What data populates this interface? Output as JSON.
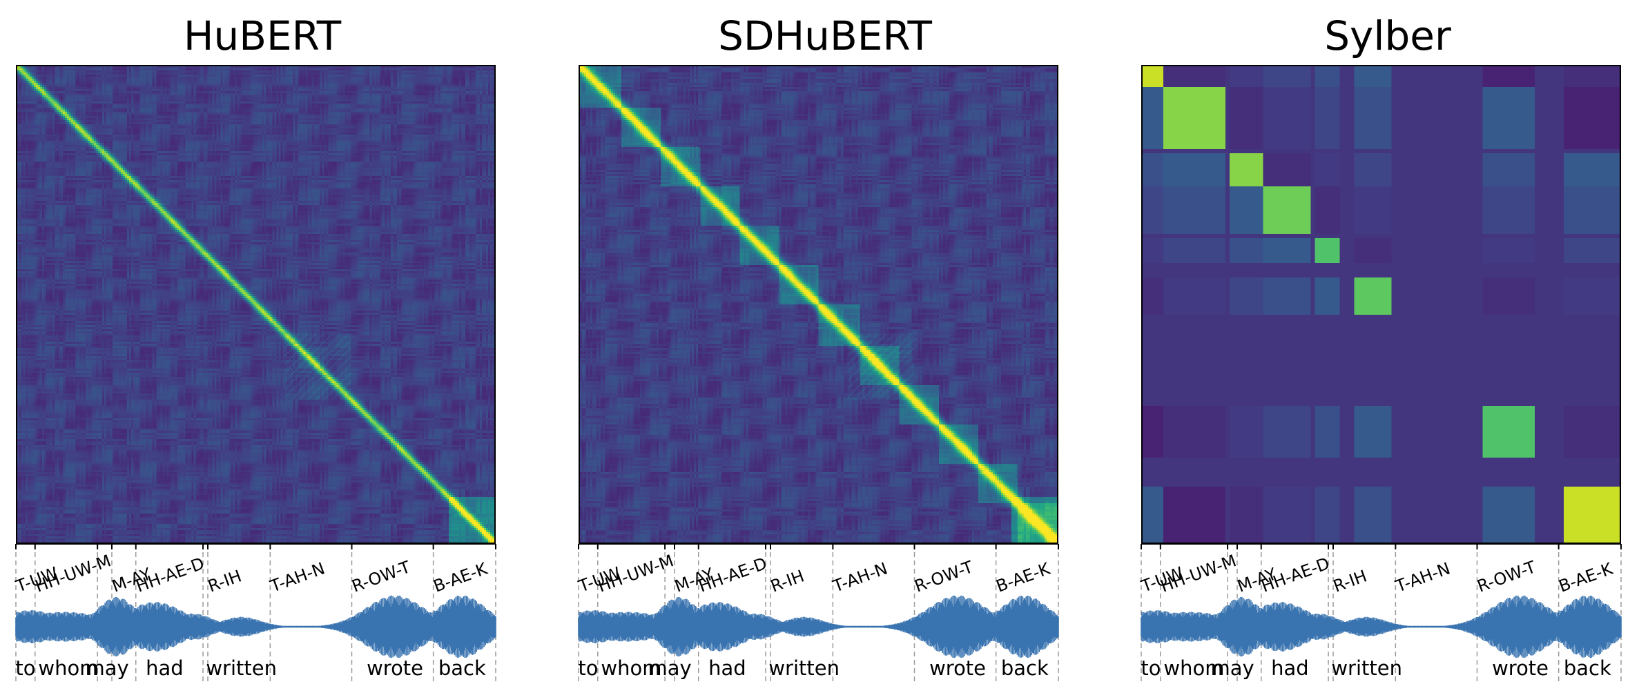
{
  "chart_data": [
    {
      "type": "heatmap",
      "title": "HuBERT",
      "colormap": "viridis",
      "phone_labels": [
        "T-UW",
        "HH-UW-M",
        "M-AY",
        "HH-AE-D",
        "R-IH",
        "T-AH-N",
        "R-OW-T",
        "B-AE-K"
      ],
      "word_labels": [
        "to",
        "whom",
        "may",
        "had",
        "written",
        "wrote",
        "back"
      ],
      "segment_boundaries": [
        0,
        0.04,
        0.17,
        0.2,
        0.25,
        0.39,
        0.4,
        0.53,
        0.7,
        0.87,
        1.0
      ]
    },
    {
      "type": "heatmap",
      "title": "SDHuBERT",
      "colormap": "viridis",
      "phone_labels": [
        "T-UW",
        "HH-UW-M",
        "M-AY",
        "HH-AE-D",
        "R-IH",
        "T-AH-N",
        "R-OW-T",
        "B-AE-K"
      ],
      "word_labels": [
        "to",
        "whom",
        "may",
        "had",
        "written",
        "wrote",
        "back"
      ],
      "segment_boundaries": [
        0,
        0.04,
        0.18,
        0.2,
        0.25,
        0.39,
        0.4,
        0.53,
        0.7,
        0.87,
        1.0
      ]
    },
    {
      "type": "heatmap",
      "title": "Sylber",
      "colormap": "viridis",
      "phone_labels": [
        "T-UW",
        "HH-UW-M",
        "M-AY",
        "HH-AE-D",
        "R-IH",
        "T-AH-N",
        "R-OW-T",
        "B-AE-K"
      ],
      "word_labels": [
        "to",
        "whom",
        "may",
        "had",
        "written",
        "wrote",
        "back"
      ],
      "segment_boundaries": [
        0,
        0.04,
        0.18,
        0.2,
        0.25,
        0.39,
        0.4,
        0.53,
        0.7,
        0.87,
        1.0
      ]
    }
  ]
}
